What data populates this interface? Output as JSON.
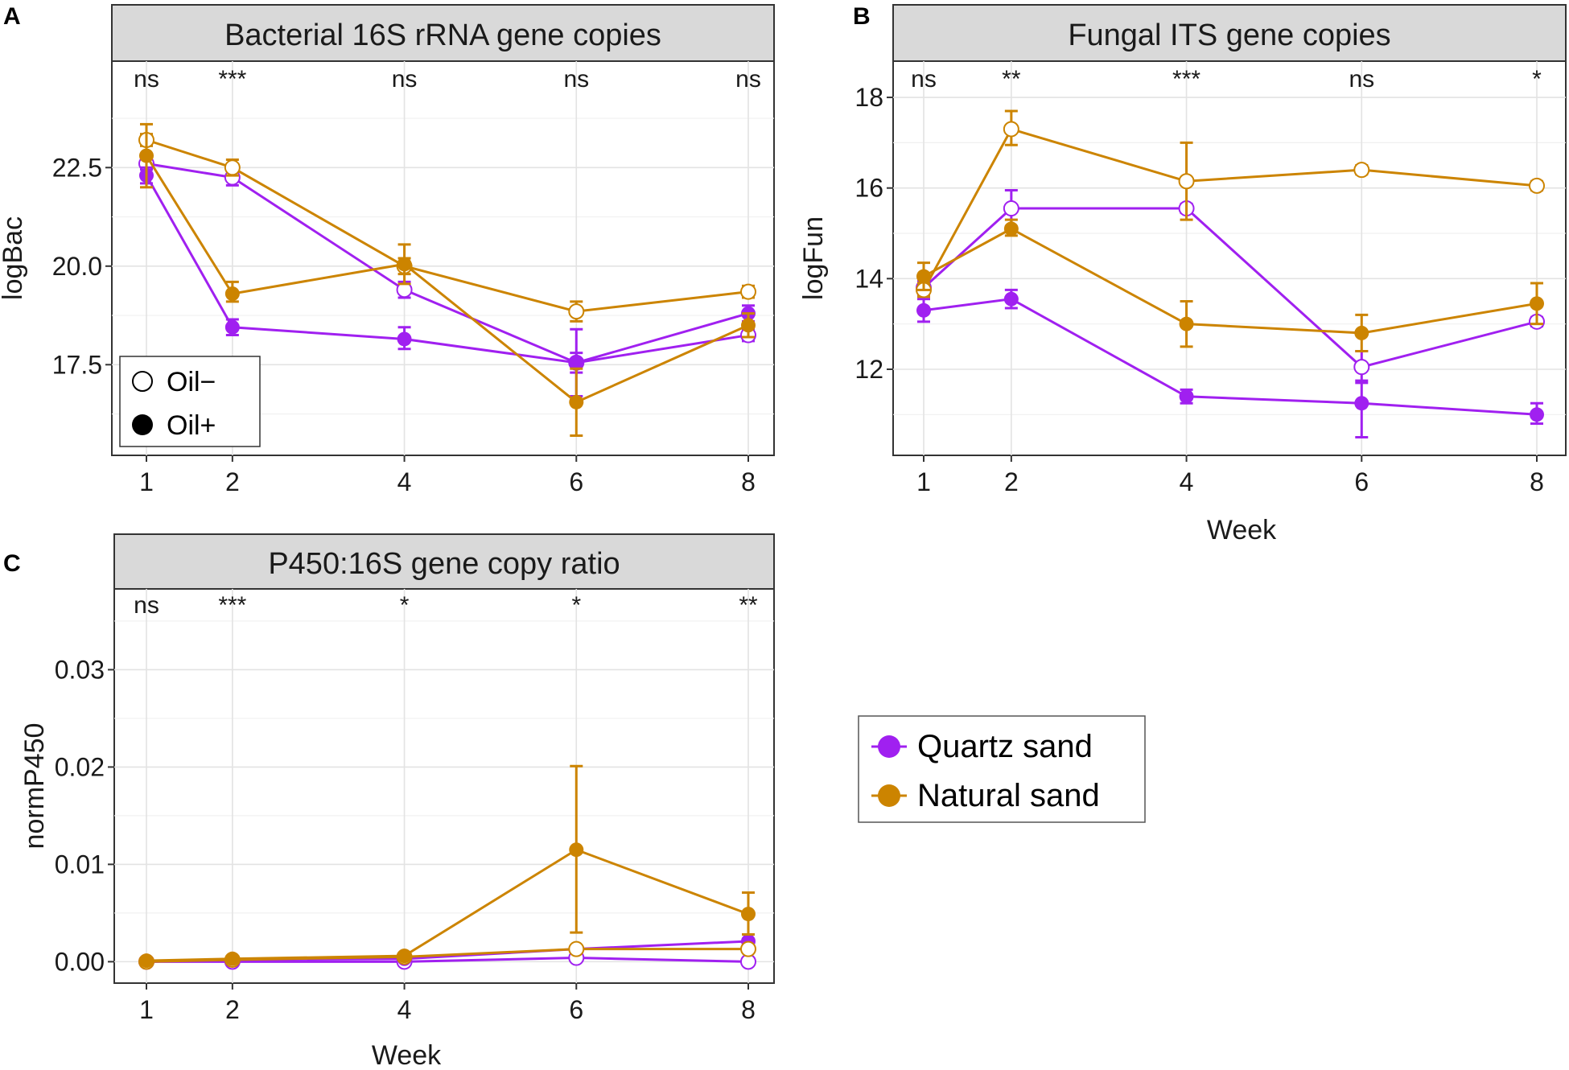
{
  "chart_data": [
    {
      "type": "line",
      "panel_label": "A",
      "title": "Bacterial 16S rRNA gene copies",
      "xlabel": "",
      "ylabel": "logBac",
      "x": [
        1,
        2,
        4,
        6,
        8
      ],
      "x_ticks": [
        "1",
        "2",
        "4",
        "6",
        "8"
      ],
      "y_ticks": [
        "17.5",
        "20.0",
        "22.5"
      ],
      "y_tick_values": [
        17.5,
        20.0,
        22.5
      ],
      "ylim": [
        15.2,
        25.2
      ],
      "significance": [
        "ns",
        "***",
        "ns",
        "ns",
        "ns"
      ],
      "series": [
        {
          "name": "Quartz sand, Oil−",
          "sand": "Quartz sand",
          "oil": "Oil−",
          "color": "#a020f0",
          "filled": false,
          "values": [
            22.6,
            22.25,
            19.4,
            17.55,
            18.25
          ],
          "err_low": [
            22.45,
            22.05,
            19.2,
            17.3,
            18.1
          ],
          "err_high": [
            22.75,
            22.45,
            19.6,
            17.8,
            18.4
          ]
        },
        {
          "name": "Quartz sand, Oil+",
          "sand": "Quartz sand",
          "oil": "Oil+",
          "color": "#a020f0",
          "filled": true,
          "values": [
            22.3,
            18.45,
            18.15,
            17.55,
            18.8
          ],
          "err_low": [
            22.1,
            18.25,
            17.9,
            16.7,
            18.6
          ],
          "err_high": [
            22.5,
            18.65,
            18.45,
            18.4,
            19.0
          ]
        },
        {
          "name": "Natural sand, Oil−",
          "sand": "Natural sand",
          "oil": "Oil−",
          "color": "#cc8400",
          "filled": false,
          "values": [
            23.2,
            22.5,
            20.0,
            18.85,
            19.35
          ],
          "err_low": [
            23.05,
            22.3,
            19.8,
            18.6,
            19.2
          ],
          "err_high": [
            23.35,
            22.7,
            20.2,
            19.1,
            19.5
          ]
        },
        {
          "name": "Natural sand, Oil+",
          "sand": "Natural sand",
          "oil": "Oil+",
          "color": "#cc8400",
          "filled": true,
          "values": [
            22.8,
            19.3,
            20.05,
            16.55,
            18.5
          ],
          "err_low": [
            22.0,
            19.1,
            19.55,
            15.7,
            18.2
          ],
          "err_high": [
            23.6,
            19.6,
            20.55,
            17.4,
            18.8
          ]
        }
      ]
    },
    {
      "type": "line",
      "panel_label": "B",
      "title": "Fungal ITS gene copies",
      "xlabel": "Week",
      "ylabel": "logFun",
      "x": [
        1,
        2,
        4,
        6,
        8
      ],
      "x_ticks": [
        "1",
        "2",
        "4",
        "6",
        "8"
      ],
      "y_ticks": [
        "12",
        "14",
        "16",
        "18"
      ],
      "y_tick_values": [
        12,
        14,
        16,
        18
      ],
      "ylim": [
        10.1,
        18.8
      ],
      "significance": [
        "ns",
        "**",
        "***",
        "ns",
        "*"
      ],
      "series": [
        {
          "name": "Quartz sand, Oil−",
          "sand": "Quartz sand",
          "oil": "Oil−",
          "color": "#a020f0",
          "filled": false,
          "values": [
            13.8,
            15.55,
            15.55,
            12.05,
            13.05
          ],
          "err_low": [
            13.65,
            15.15,
            15.45,
            11.7,
            12.95
          ],
          "err_high": [
            13.95,
            15.95,
            15.65,
            12.4,
            13.15
          ]
        },
        {
          "name": "Quartz sand, Oil+",
          "sand": "Quartz sand",
          "oil": "Oil+",
          "color": "#a020f0",
          "filled": true,
          "values": [
            13.3,
            13.55,
            11.4,
            11.25,
            11.0
          ],
          "err_low": [
            13.05,
            13.35,
            11.25,
            10.5,
            10.8
          ],
          "err_high": [
            13.55,
            13.75,
            11.55,
            11.75,
            11.25
          ]
        },
        {
          "name": "Natural sand, Oil−",
          "sand": "Natural sand",
          "oil": "Oil−",
          "color": "#cc8400",
          "filled": false,
          "values": [
            13.75,
            17.3,
            16.15,
            16.4,
            16.05
          ],
          "err_low": [
            13.6,
            16.95,
            15.3,
            16.3,
            15.95
          ],
          "err_high": [
            13.9,
            17.7,
            17.0,
            16.5,
            16.15
          ]
        },
        {
          "name": "Natural sand, Oil+",
          "sand": "Natural sand",
          "oil": "Oil+",
          "color": "#cc8400",
          "filled": true,
          "values": [
            14.05,
            15.1,
            13.0,
            12.8,
            13.45
          ],
          "err_low": [
            13.75,
            14.95,
            12.5,
            12.4,
            13.0
          ],
          "err_high": [
            14.35,
            15.3,
            13.5,
            13.2,
            13.9
          ]
        }
      ]
    },
    {
      "type": "line",
      "panel_label": "C",
      "title": "P450:16S gene copy ratio",
      "xlabel": "Week",
      "ylabel": "normP450",
      "x": [
        1,
        2,
        4,
        6,
        8
      ],
      "x_ticks": [
        "1",
        "2",
        "4",
        "6",
        "8"
      ],
      "y_ticks": [
        "0.00",
        "0.01",
        "0.02",
        "0.03"
      ],
      "y_tick_values": [
        0.0,
        0.01,
        0.02,
        0.03
      ],
      "ylim": [
        -0.0022,
        0.0383
      ],
      "significance": [
        "ns",
        "***",
        "*",
        "*",
        "**"
      ],
      "series": [
        {
          "name": "Quartz sand, Oil−",
          "sand": "Quartz sand",
          "oil": "Oil−",
          "color": "#a020f0",
          "filled": false,
          "values": [
            0.0,
            0.0,
            0.0,
            0.0004,
            0.0
          ],
          "err_low": [
            0.0,
            0.0,
            0.0,
            0.0003,
            0.0
          ],
          "err_high": [
            0.0,
            0.0,
            0.0,
            0.0005,
            0.0
          ]
        },
        {
          "name": "Quartz sand, Oil+",
          "sand": "Quartz sand",
          "oil": "Oil+",
          "color": "#a020f0",
          "filled": true,
          "values": [
            0.0,
            0.0002,
            0.0003,
            0.0013,
            0.0021
          ],
          "err_low": [
            0.0,
            0.0001,
            0.0002,
            0.0011,
            0.0019
          ],
          "err_high": [
            0.0,
            0.0003,
            0.0004,
            0.0015,
            0.0023
          ]
        },
        {
          "name": "Natural sand, Oil−",
          "sand": "Natural sand",
          "oil": "Oil−",
          "color": "#cc8400",
          "filled": false,
          "values": [
            0.0,
            0.0002,
            0.0005,
            0.0013,
            0.0013
          ],
          "err_low": [
            0.0,
            0.0001,
            0.0004,
            0.0012,
            0.0012
          ],
          "err_high": [
            0.0,
            0.0003,
            0.0006,
            0.0014,
            0.0014
          ]
        },
        {
          "name": "Natural sand, Oil+",
          "sand": "Natural sand",
          "oil": "Oil+",
          "color": "#cc8400",
          "filled": true,
          "values": [
            0.0001,
            0.0003,
            0.0006,
            0.0115,
            0.0049
          ],
          "err_low": [
            0.0,
            0.0002,
            0.0004,
            0.003,
            0.0028
          ],
          "err_high": [
            0.0002,
            0.0004,
            0.0008,
            0.0201,
            0.0071
          ]
        }
      ]
    }
  ],
  "legends": {
    "oil": {
      "items": [
        {
          "label": "Oil−",
          "filled": false,
          "color": "#000000"
        },
        {
          "label": "Oil+",
          "filled": true,
          "color": "#000000"
        }
      ]
    },
    "sand": {
      "items": [
        {
          "label": "Quartz sand",
          "color": "#a020f0"
        },
        {
          "label": "Natural sand",
          "color": "#cc8400"
        }
      ]
    }
  }
}
